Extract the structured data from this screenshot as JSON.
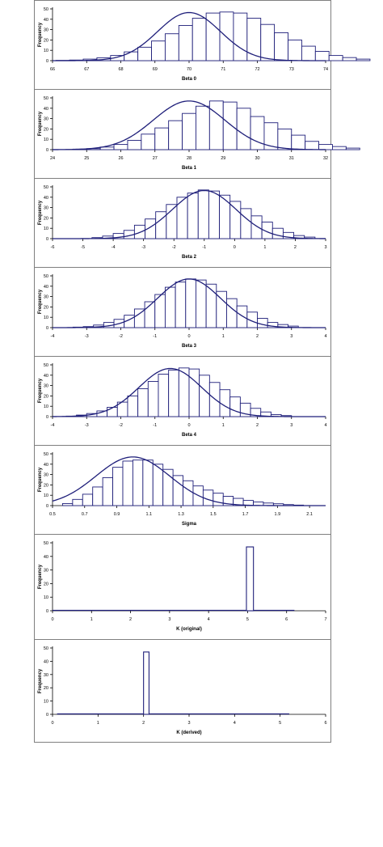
{
  "chart_data": [
    {
      "type": "bar",
      "xlabel": "Beta 0",
      "ylabel": "Frequency",
      "xlim": [
        66,
        74
      ],
      "xticks": [
        "66",
        "67",
        "68",
        "69",
        "70",
        "71",
        "72",
        "73",
        "74"
      ],
      "ylim": [
        0,
        50
      ],
      "yticks": [
        "0",
        "10",
        "20",
        "30",
        "40",
        "50"
      ],
      "bins": {
        "start": 66.1,
        "width": 0.4
      },
      "values": [
        0.3,
        0.6,
        1.5,
        2.8,
        5,
        8.5,
        13,
        19,
        26,
        34,
        41,
        46,
        47,
        46,
        41,
        35,
        27,
        20,
        14,
        9,
        5,
        3,
        1.5
      ],
      "curve": {
        "type": "normal",
        "mean": 70,
        "sd": 0.92,
        "peak": 46.5
      },
      "line_color": "#1f1f7a"
    },
    {
      "type": "bar",
      "xlabel": "Beta 1",
      "ylabel": "Frequency",
      "xlim": [
        24,
        32
      ],
      "xticks": [
        "24",
        "25",
        "26",
        "27",
        "28",
        "29",
        "30",
        "31",
        "32"
      ],
      "ylim": [
        0,
        50
      ],
      "yticks": [
        "0",
        "10",
        "20",
        "30",
        "40",
        "50"
      ],
      "bins": {
        "start": 24.6,
        "width": 0.4
      },
      "values": [
        0.5,
        1,
        2.5,
        5,
        9,
        15,
        21,
        28,
        35,
        42,
        47,
        46,
        40,
        32,
        26,
        20,
        14,
        8,
        5,
        3,
        1.5
      ],
      "curve": {
        "type": "normal",
        "mean": 28,
        "sd": 1.05,
        "peak": 47
      },
      "line_color": "#1f1f7a"
    },
    {
      "type": "bar",
      "xlabel": "Beta 2",
      "ylabel": "Frequency",
      "xlim": [
        -6,
        3
      ],
      "xticks": [
        "-6",
        "-5",
        "-4",
        "-3",
        "-2",
        "-1",
        "0",
        "1",
        "2",
        "3"
      ],
      "ylim": [
        0,
        50
      ],
      "yticks": [
        "0",
        "10",
        "20",
        "30",
        "40",
        "50"
      ],
      "bins": {
        "start": -4.7,
        "width": 0.35
      },
      "values": [
        1,
        2.5,
        5,
        8,
        13,
        19,
        26,
        33,
        40,
        44,
        47,
        46,
        42,
        36,
        29,
        22,
        16,
        10,
        6,
        3,
        1.5
      ],
      "curve": {
        "type": "normal",
        "mean": -1,
        "sd": 1.05,
        "peak": 46.5
      },
      "line_color": "#1f1f7a"
    },
    {
      "type": "bar",
      "xlabel": "Beta 3",
      "ylabel": "Frequency",
      "xlim": [
        -4,
        4
      ],
      "xticks": [
        "-4",
        "-3",
        "-2",
        "-1",
        "0",
        "1",
        "2",
        "3",
        "4"
      ],
      "ylim": [
        0,
        50
      ],
      "yticks": [
        "0",
        "10",
        "20",
        "30",
        "40",
        "50"
      ],
      "bins": {
        "start": -3.4,
        "width": 0.3
      },
      "values": [
        0.5,
        1,
        2.5,
        5,
        8,
        12,
        18,
        25,
        32,
        39,
        44,
        47,
        46,
        42,
        35,
        28,
        21,
        15,
        9,
        5,
        3,
        1.5
      ],
      "curve": {
        "type": "normal",
        "mean": 0,
        "sd": 0.92,
        "peak": 47
      },
      "line_color": "#1f1f7a"
    },
    {
      "type": "bar",
      "xlabel": "Beta 4",
      "ylabel": "Frequency",
      "xlim": [
        -4,
        4
      ],
      "xticks": [
        "-4",
        "-3",
        "-2",
        "-1",
        "0",
        "1",
        "2",
        "3",
        "4"
      ],
      "ylim": [
        0,
        50
      ],
      "yticks": [
        "0",
        "10",
        "20",
        "30",
        "40",
        "50"
      ],
      "bins": {
        "start": -3.6,
        "width": 0.3
      },
      "values": [
        0.5,
        1.5,
        3,
        5.5,
        9,
        14,
        20,
        27,
        34,
        41,
        45,
        47,
        46,
        40,
        33,
        26,
        19,
        13,
        8,
        4.5,
        2,
        1
      ],
      "curve": {
        "type": "normal",
        "mean": -0.55,
        "sd": 0.92,
        "peak": 46.5
      },
      "line_color": "#1f1f7a"
    },
    {
      "type": "bar",
      "xlabel": "Sigma",
      "ylabel": "Frequency",
      "xlim": [
        0.5,
        2.2
      ],
      "xticks": [
        "0.5",
        "0.7",
        "0.9",
        "1.1",
        "1.3",
        "1.5",
        "1.7",
        "1.9",
        "2.1"
      ],
      "xtick_values": [
        0.5,
        0.7,
        0.9,
        1.1,
        1.3,
        1.5,
        1.7,
        1.9,
        2.1
      ],
      "ylim": [
        0,
        50
      ],
      "yticks": [
        "0",
        "10",
        "20",
        "30",
        "40",
        "50"
      ],
      "bins": {
        "start": 0.5,
        "width": 0.0625
      },
      "values": [
        0,
        2,
        6,
        11,
        18,
        27,
        37,
        43,
        44,
        44,
        40,
        35,
        29,
        24,
        19,
        15,
        12,
        9,
        7,
        5,
        3.5,
        2.5,
        1.8,
        1,
        0.5
      ],
      "curve": {
        "type": "normal",
        "mean": 1.0,
        "sd": 0.23,
        "peak": 47
      },
      "line_color": "#1f1f7a"
    },
    {
      "type": "bar",
      "xlabel": "K (original)",
      "ylabel": "Frequency",
      "xlim": [
        0,
        7
      ],
      "xticks": [
        "0",
        "1",
        "2",
        "3",
        "4",
        "5",
        "6",
        "7"
      ],
      "ylim": [
        0,
        50
      ],
      "yticks": [
        "0",
        "10",
        "20",
        "30",
        "40",
        "50"
      ],
      "baseline": [
        0,
        6.2
      ],
      "spike": {
        "x0": 4.97,
        "x1": 5.15,
        "value": 47
      },
      "line_color": "#1f1f7a"
    },
    {
      "type": "bar",
      "xlabel": "K (derived)",
      "ylabel": "Frequency",
      "xlim": [
        0,
        6
      ],
      "xticks": [
        "0",
        "1",
        "2",
        "3",
        "4",
        "5",
        "6"
      ],
      "ylim": [
        0,
        50
      ],
      "yticks": [
        "0",
        "10",
        "20",
        "30",
        "40",
        "50"
      ],
      "baseline": [
        0.1,
        5.2
      ],
      "spike": {
        "x0": 2.0,
        "x1": 2.12,
        "value": 47
      },
      "line_color": "#1f1f7a"
    }
  ]
}
